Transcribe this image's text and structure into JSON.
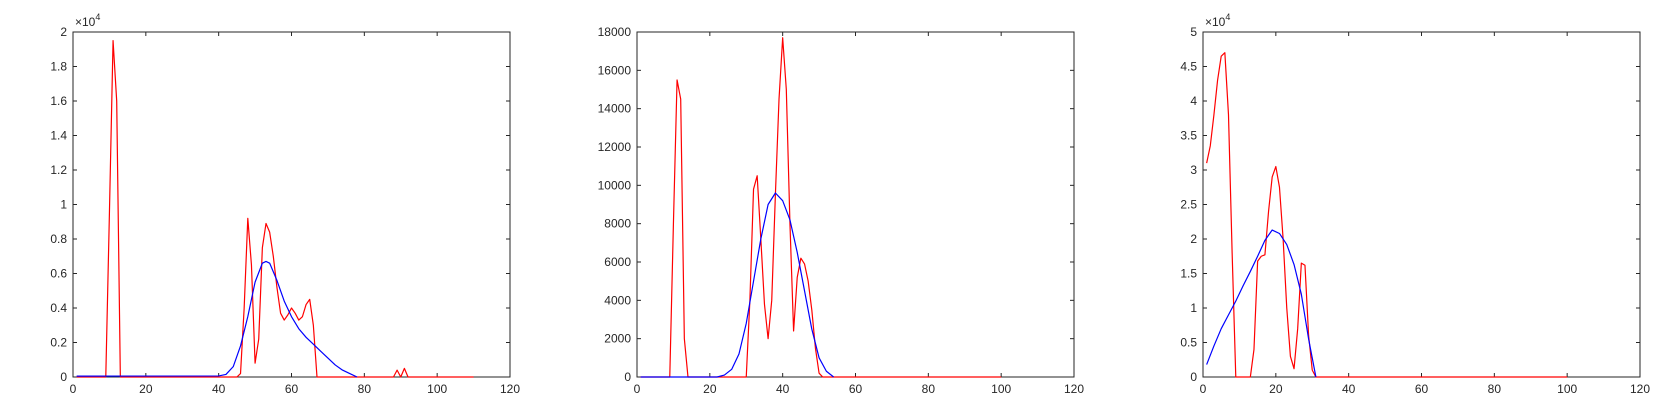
{
  "chart_data": [
    {
      "type": "line",
      "xlim": [
        0,
        120
      ],
      "ylim": [
        0,
        20000
      ],
      "x_ticks": [
        "0",
        "20",
        "40",
        "60",
        "80",
        "100",
        "120"
      ],
      "y_ticks": [
        "0",
        "0.2",
        "0.4",
        "0.6",
        "0.8",
        "1",
        "1.2",
        "1.4",
        "1.6",
        "1.8",
        "2"
      ],
      "y_exponent": "×10",
      "y_exponent_power": "4",
      "grid": false,
      "series": [
        {
          "color": "#ff0000",
          "x": [
            1,
            9,
            10,
            11,
            12,
            13,
            14,
            45,
            46,
            47,
            48,
            49,
            50,
            51,
            52,
            53,
            54,
            55,
            56,
            57,
            58,
            59,
            60,
            61,
            62,
            63,
            64,
            65,
            66,
            67,
            68,
            78,
            88,
            89,
            90,
            91,
            92,
            93,
            110
          ],
          "y": [
            0,
            0,
            9500,
            19500,
            16000,
            0,
            0,
            0,
            200,
            4000,
            9200,
            6500,
            800,
            2200,
            7500,
            8900,
            8400,
            7000,
            5200,
            3700,
            3300,
            3600,
            4000,
            3700,
            3300,
            3500,
            4200,
            4500,
            3000,
            0,
            0,
            0,
            0,
            400,
            0,
            500,
            0,
            0,
            0
          ]
        },
        {
          "color": "#0000ff",
          "x": [
            1,
            40,
            42,
            44,
            46,
            48,
            50,
            52,
            53,
            54,
            56,
            58,
            60,
            62,
            64,
            66,
            68,
            70,
            72,
            74,
            76,
            78
          ],
          "y": [
            50,
            60,
            150,
            600,
            1800,
            3500,
            5500,
            6600,
            6700,
            6600,
            5600,
            4400,
            3500,
            2800,
            2300,
            1900,
            1500,
            1100,
            700,
            400,
            200,
            0
          ]
        }
      ]
    },
    {
      "type": "line",
      "xlim": [
        0,
        120
      ],
      "ylim": [
        0,
        18000
      ],
      "x_ticks": [
        "0",
        "20",
        "40",
        "60",
        "80",
        "100",
        "120"
      ],
      "y_ticks": [
        "0",
        "2000",
        "4000",
        "6000",
        "8000",
        "10000",
        "12000",
        "14000",
        "16000",
        "18000"
      ],
      "grid": false,
      "series": [
        {
          "color": "#ff0000",
          "x": [
            1,
            9,
            10,
            11,
            12,
            13,
            14,
            30,
            31,
            32,
            33,
            34,
            35,
            36,
            37,
            38,
            39,
            40,
            41,
            42,
            43,
            44,
            45,
            46,
            47,
            48,
            49,
            50,
            51,
            52,
            100
          ],
          "y": [
            0,
            0,
            8000,
            15500,
            14500,
            2000,
            0,
            0,
            4000,
            9800,
            10500,
            7200,
            3800,
            2000,
            4000,
            9500,
            14500,
            17700,
            15000,
            8000,
            2400,
            5200,
            6200,
            5900,
            5000,
            3500,
            1500,
            200,
            0,
            0,
            0
          ]
        },
        {
          "color": "#0000ff",
          "x": [
            1,
            22,
            24,
            26,
            28,
            30,
            32,
            34,
            36,
            38,
            40,
            42,
            44,
            46,
            48,
            50,
            52,
            54
          ],
          "y": [
            0,
            0,
            100,
            400,
            1200,
            2800,
            5000,
            7200,
            9000,
            9600,
            9200,
            8200,
            6500,
            4500,
            2500,
            1000,
            300,
            0
          ]
        }
      ]
    },
    {
      "type": "line",
      "xlim": [
        0,
        120
      ],
      "ylim": [
        0,
        50000
      ],
      "x_ticks": [
        "0",
        "20",
        "40",
        "60",
        "80",
        "100",
        "120"
      ],
      "y_ticks": [
        "0",
        "0.5",
        "1",
        "1.5",
        "2",
        "2.5",
        "3",
        "3.5",
        "4",
        "4.5",
        "5"
      ],
      "y_exponent": "×10",
      "y_exponent_power": "4",
      "grid": false,
      "series": [
        {
          "color": "#ff0000",
          "x": [
            1,
            2,
            3,
            4,
            5,
            6,
            7,
            8,
            9,
            10,
            11,
            12,
            13,
            14,
            15,
            16,
            17,
            18,
            19,
            20,
            21,
            22,
            23,
            24,
            25,
            26,
            27,
            28,
            29,
            30,
            31,
            100
          ],
          "y": [
            31000,
            33500,
            38000,
            43000,
            46500,
            47000,
            38000,
            18000,
            0,
            0,
            0,
            0,
            0,
            4000,
            16800,
            17500,
            17700,
            24000,
            29000,
            30500,
            27500,
            20000,
            10000,
            3000,
            1200,
            7000,
            16500,
            16200,
            6000,
            1000,
            0,
            0
          ]
        },
        {
          "color": "#0000ff",
          "x": [
            1,
            3,
            5,
            7,
            9,
            11,
            13,
            15,
            17,
            19,
            21,
            23,
            25,
            27,
            29,
            31
          ],
          "y": [
            1800,
            4500,
            7000,
            9000,
            11000,
            13200,
            15300,
            17500,
            19800,
            21300,
            20800,
            19200,
            16300,
            12000,
            5500,
            0
          ]
        }
      ]
    }
  ]
}
